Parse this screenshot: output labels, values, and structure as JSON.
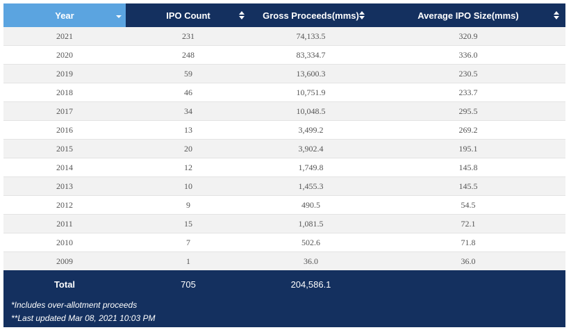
{
  "table": {
    "headers": [
      {
        "label": "Year",
        "sort": "caret"
      },
      {
        "label": "IPO Count",
        "sort": "both"
      },
      {
        "label": "Gross Proceeds(mms)",
        "sort": "both"
      },
      {
        "label": "Average IPO Size(mms)",
        "sort": "both"
      }
    ],
    "rows": [
      [
        "2021",
        "231",
        "74,133.5",
        "320.9"
      ],
      [
        "2020",
        "248",
        "83,334.7",
        "336.0"
      ],
      [
        "2019",
        "59",
        "13,600.3",
        "230.5"
      ],
      [
        "2018",
        "46",
        "10,751.9",
        "233.7"
      ],
      [
        "2017",
        "34",
        "10,048.5",
        "295.5"
      ],
      [
        "2016",
        "13",
        "3,499.2",
        "269.2"
      ],
      [
        "2015",
        "20",
        "3,902.4",
        "195.1"
      ],
      [
        "2014",
        "12",
        "1,749.8",
        "145.8"
      ],
      [
        "2013",
        "10",
        "1,455.3",
        "145.5"
      ],
      [
        "2012",
        "9",
        "490.5",
        "54.5"
      ],
      [
        "2011",
        "15",
        "1,081.5",
        "72.1"
      ],
      [
        "2010",
        "7",
        "502.6",
        "71.8"
      ],
      [
        "2009",
        "1",
        "36.0",
        "36.0"
      ]
    ]
  },
  "footer": {
    "total_label": "Total",
    "total_ipo_count": "705",
    "total_gross_proceeds": "204,586.1",
    "note_1": "*Includes over-allotment proceeds",
    "note_2": "**Last updated Mar 08, 2021 10:03 PM"
  },
  "colors": {
    "header_bg": "#14305f",
    "active_header_bg": "#5ba4e0",
    "row_alt_bg": "#f2f2f2"
  }
}
